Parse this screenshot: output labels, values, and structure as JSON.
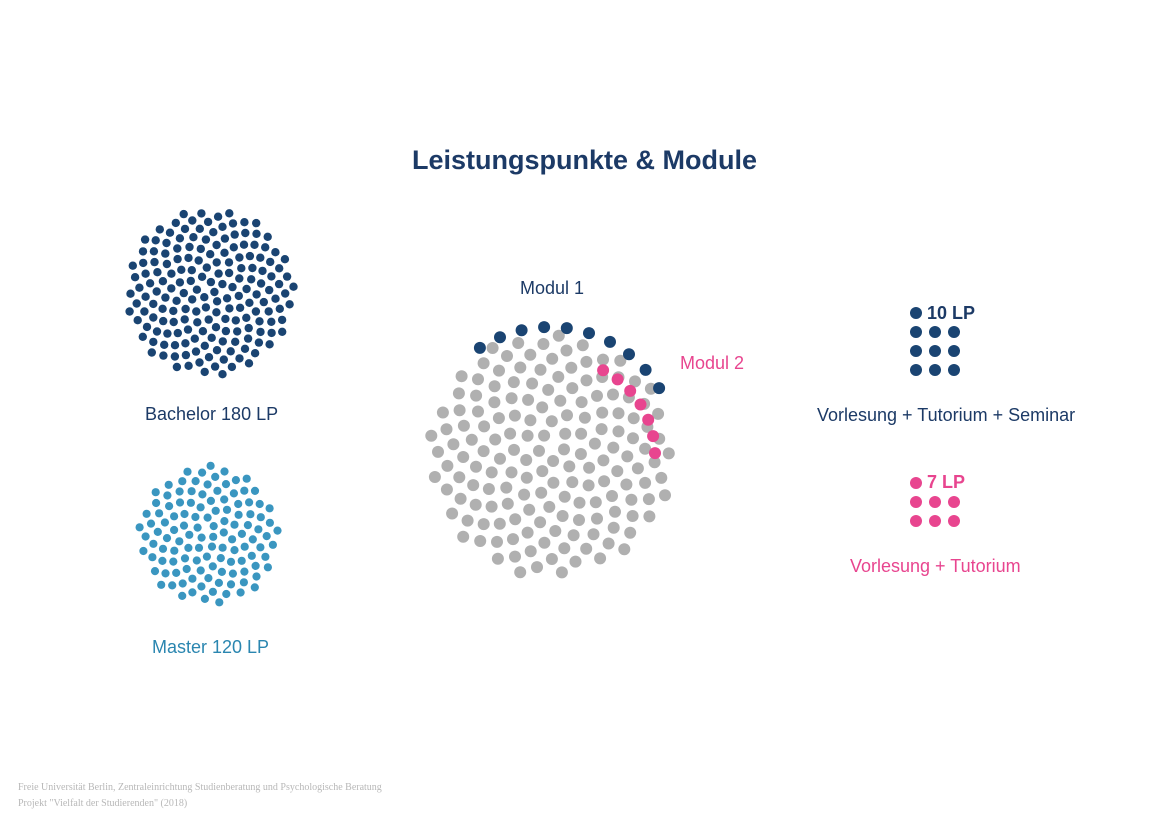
{
  "title": "Leistungspunkte & Module",
  "colors": {
    "bachelor": "#1a4472",
    "master": "#3a96c0",
    "neutral": "#b0b0b0",
    "module2": "#e8458f",
    "title": "#1c3a66"
  },
  "bachelor": {
    "label": "Bachelor 180 LP",
    "points": 180
  },
  "master": {
    "label": "Master 120 LP",
    "points": 120
  },
  "modules": {
    "module1_label": "Modul 1",
    "module2_label": "Modul 2",
    "module1_points": 10,
    "module2_points": 7
  },
  "legend": {
    "ten_lp_label": "10 LP",
    "ten_lp_caption": "Vorlesung + Tutorium + Seminar",
    "seven_lp_label": "7 LP",
    "seven_lp_caption": "Vorlesung + Tutorium"
  },
  "footer": {
    "line1": "Freie Universität Berlin, Zentraleinrichtung Studienberatung und Psychologische Beratung",
    "line2": "Projekt \"Vielfalt der Studierenden\" (2018)"
  }
}
